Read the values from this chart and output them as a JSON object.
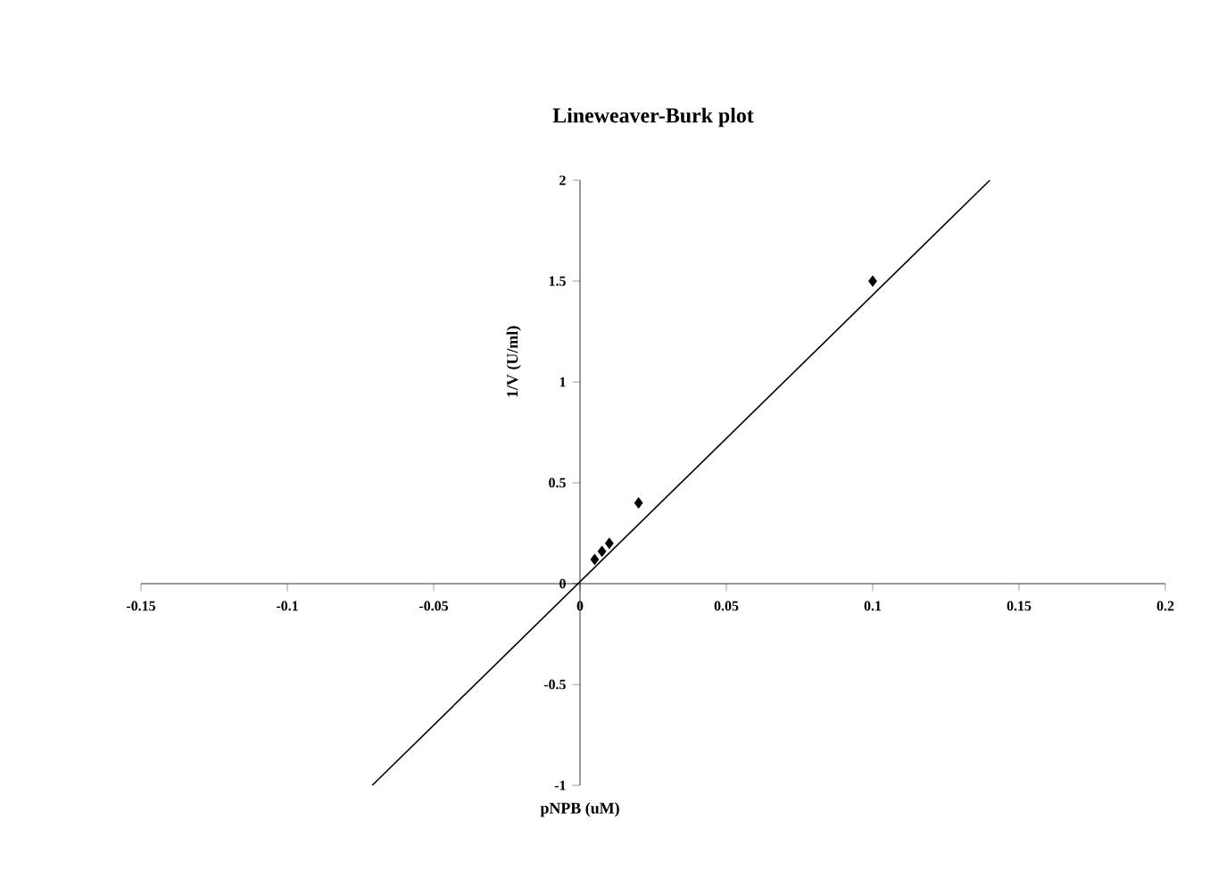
{
  "chart_data": {
    "type": "scatter",
    "title": "Lineweaver-Burk plot",
    "xlabel": "pNPB (uM)",
    "ylabel": "1/V (U/ml)",
    "xlim": [
      -0.15,
      0.2
    ],
    "ylim": [
      -1,
      2
    ],
    "xticks": [
      -0.15,
      -0.1,
      -0.05,
      0,
      0.05,
      0.1,
      0.15,
      0.2
    ],
    "yticks": [
      -1,
      -0.5,
      0,
      0.5,
      1,
      1.5,
      2
    ],
    "grid": false,
    "series": [
      {
        "marker": "diamond",
        "color": "#000000",
        "x": [
          0.005,
          0.0075,
          0.01,
          0.02,
          0.1
        ],
        "values": [
          0.12,
          0.16,
          0.2,
          0.4,
          1.5
        ]
      },
      {
        "type": "line",
        "marker": "none",
        "color": "#000000",
        "x": [
          -0.071,
          0.14
        ],
        "values": [
          -1,
          2
        ]
      }
    ]
  }
}
